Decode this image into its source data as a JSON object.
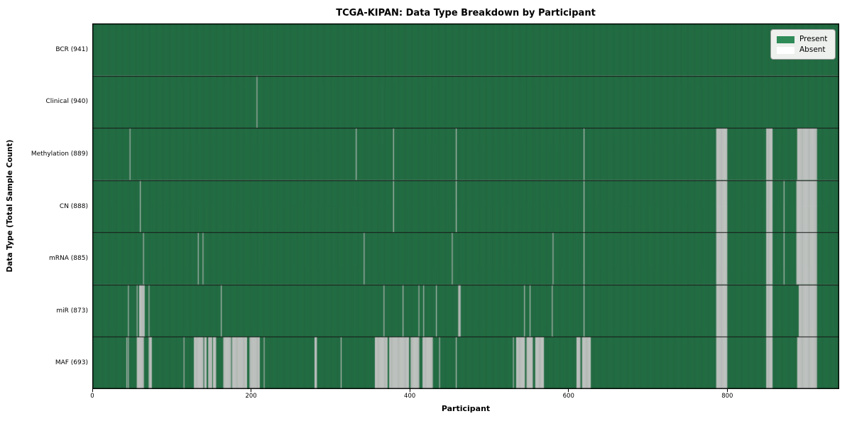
{
  "title": "TCGA-KIPAN: Data Type Breakdown by Participant",
  "axes": {
    "xlabel": "Participant",
    "ylabel": "Data Type (Total Sample Count)",
    "x_ticks": [
      0,
      200,
      400,
      600,
      800
    ],
    "x_tick_labels": [
      "0",
      "200",
      "400",
      "600",
      "800"
    ]
  },
  "legend": {
    "items": [
      {
        "label": "Present",
        "color": "#2e8b57"
      },
      {
        "label": "Absent",
        "color": "#ffffff"
      }
    ]
  },
  "chart_data": {
    "type": "heatmap",
    "title": "TCGA-KIPAN: Data Type Breakdown by Participant",
    "xlabel": "Participant",
    "ylabel": "Data Type (Total Sample Count)",
    "x_domain": [
      0,
      941
    ],
    "n_participants": 941,
    "legend_position": "upper right",
    "grid": false,
    "colors": {
      "present": "#2e8b57",
      "absent": "#fdfdfd",
      "bar_edge": "rgba(10,25,16,0.42)"
    },
    "rows": [
      {
        "name": "BCR",
        "label": "BCR (941)",
        "present_count": 941,
        "absent_ranges": []
      },
      {
        "name": "Clinical",
        "label": "Clinical (940)",
        "present_count": 940,
        "absent_ranges": [
          [
            207,
            207
          ]
        ]
      },
      {
        "name": "Methylation",
        "label": "Methylation (889)",
        "present_count": 889,
        "absent_ranges": [
          [
            47,
            47
          ],
          [
            332,
            332
          ],
          [
            379,
            379
          ],
          [
            458,
            458
          ],
          [
            619,
            619
          ],
          [
            786,
            799
          ],
          [
            849,
            856
          ],
          [
            888,
            912
          ]
        ]
      },
      {
        "name": "CN",
        "label": "CN (888)",
        "present_count": 888,
        "absent_ranges": [
          [
            60,
            60
          ],
          [
            379,
            379
          ],
          [
            458,
            458
          ],
          [
            619,
            619
          ],
          [
            786,
            799
          ],
          [
            849,
            856
          ],
          [
            871,
            871
          ],
          [
            887,
            912
          ]
        ]
      },
      {
        "name": "mRNA",
        "label": "mRNA (885)",
        "present_count": 885,
        "absent_ranges": [
          [
            64,
            64
          ],
          [
            133,
            133
          ],
          [
            139,
            139
          ],
          [
            342,
            342
          ],
          [
            453,
            453
          ],
          [
            580,
            580
          ],
          [
            619,
            619
          ],
          [
            786,
            799
          ],
          [
            849,
            856
          ],
          [
            871,
            871
          ],
          [
            887,
            912
          ]
        ]
      },
      {
        "name": "miR",
        "label": "miR (873)",
        "present_count": 873,
        "absent_ranges": [
          [
            45,
            45
          ],
          [
            56,
            56
          ],
          [
            59,
            65
          ],
          [
            71,
            71
          ],
          [
            162,
            162
          ],
          [
            367,
            367
          ],
          [
            391,
            391
          ],
          [
            411,
            411
          ],
          [
            417,
            417
          ],
          [
            433,
            433
          ],
          [
            461,
            463
          ],
          [
            544,
            544
          ],
          [
            551,
            551
          ],
          [
            579,
            579
          ],
          [
            619,
            619
          ],
          [
            786,
            799
          ],
          [
            849,
            856
          ],
          [
            890,
            912
          ]
        ]
      },
      {
        "name": "MAF",
        "label": "MAF (693)",
        "present_count": 693,
        "absent_ranges": [
          [
            43,
            43
          ],
          [
            45,
            45
          ],
          [
            56,
            64
          ],
          [
            71,
            74
          ],
          [
            115,
            115
          ],
          [
            128,
            139
          ],
          [
            141,
            143
          ],
          [
            146,
            150
          ],
          [
            152,
            155
          ],
          [
            165,
            174
          ],
          [
            176,
            194
          ],
          [
            198,
            210
          ],
          [
            216,
            216
          ],
          [
            280,
            282
          ],
          [
            313,
            313
          ],
          [
            356,
            371
          ],
          [
            374,
            398
          ],
          [
            401,
            411
          ],
          [
            416,
            428
          ],
          [
            437,
            437
          ],
          [
            458,
            458
          ],
          [
            530,
            530
          ],
          [
            534,
            544
          ],
          [
            547,
            554
          ],
          [
            558,
            568
          ],
          [
            610,
            614
          ],
          [
            617,
            627
          ],
          [
            786,
            799
          ],
          [
            849,
            856
          ],
          [
            888,
            912
          ]
        ]
      }
    ]
  }
}
